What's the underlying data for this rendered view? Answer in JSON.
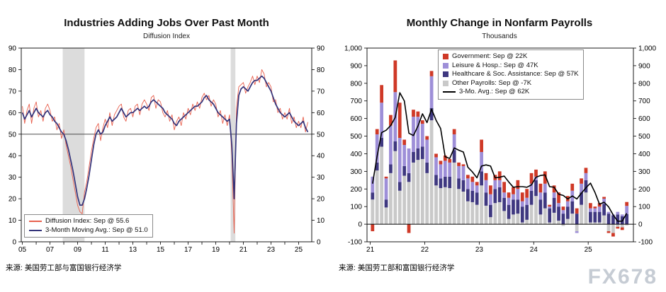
{
  "footer": {
    "watermark": "FX678"
  },
  "chart_data": [
    {
      "type": "line",
      "title": "Industries Adding Jobs Over Past Month",
      "subtitle": "Diffusion Index",
      "source": "来源: 美国劳工部与富国银行经济学",
      "xlim": [
        2004.92,
        2025.95
      ],
      "ylim": [
        0,
        90
      ],
      "yticks": [
        0,
        10,
        20,
        30,
        40,
        50,
        60,
        70,
        80,
        90
      ],
      "ref_line": 50,
      "recessions": [
        [
          2007.92,
          2009.5
        ],
        [
          2020.08,
          2020.42
        ]
      ],
      "xticks": [
        {
          "x": 2005,
          "label": "05"
        },
        {
          "x": 2007,
          "label": "07"
        },
        {
          "x": 2009,
          "label": "09"
        },
        {
          "x": 2011,
          "label": "11"
        },
        {
          "x": 2013,
          "label": "13"
        },
        {
          "x": 2015,
          "label": "15"
        },
        {
          "x": 2017,
          "label": "17"
        },
        {
          "x": 2019,
          "label": "19"
        },
        {
          "x": 2021,
          "label": "21"
        },
        {
          "x": 2023,
          "label": "23"
        },
        {
          "x": 2025,
          "label": "25"
        }
      ],
      "series": [
        {
          "name": "Diffusion Index: Sep @ 55.6",
          "color": "#e8604e",
          "width": 0.9,
          "start": 2005,
          "step": 0.1666667,
          "values": [
            63,
            55,
            61,
            64,
            55,
            62,
            65,
            58,
            61,
            56,
            62,
            64,
            61,
            56,
            58,
            52,
            55,
            48,
            52,
            45,
            40,
            35,
            29,
            23,
            17,
            14,
            13,
            23,
            28,
            35,
            42,
            48,
            53,
            55,
            47,
            53,
            57,
            53,
            60,
            54,
            59,
            61,
            63,
            64,
            58,
            56,
            61,
            62,
            58,
            63,
            64,
            59,
            64,
            66,
            64,
            61,
            67,
            68,
            62,
            66,
            65,
            60,
            58,
            61,
            56,
            59,
            52,
            56,
            58,
            54,
            60,
            57,
            62,
            59,
            64,
            61,
            65,
            62,
            67,
            69,
            66,
            68,
            63,
            66,
            64,
            58,
            61,
            55,
            59,
            54,
            59,
            40,
            4,
            62,
            72,
            73,
            74,
            69,
            72,
            74,
            77,
            73,
            77,
            74,
            80,
            78,
            72,
            74,
            72,
            65,
            66,
            60,
            62,
            57,
            60,
            57,
            62,
            55,
            58,
            53,
            56,
            53,
            58,
            51,
            55.6
          ]
        },
        {
          "name": "3-Month Moving Avg.: Sep @ 51.0",
          "color": "#33337a",
          "width": 1.7,
          "start": 2005,
          "step": 0.1666667,
          "values": [
            60,
            57,
            59,
            61,
            58,
            60,
            62,
            60,
            59,
            58,
            60,
            61,
            59,
            58,
            56,
            55,
            53,
            51,
            50,
            47,
            43,
            38,
            33,
            27,
            21,
            17,
            17,
            20,
            25,
            31,
            38,
            45,
            50,
            52,
            50,
            51,
            54,
            56,
            58,
            56,
            57,
            58,
            60,
            62,
            60,
            58,
            59,
            60,
            60,
            61,
            62,
            61,
            62,
            63,
            62,
            63,
            65,
            66,
            65,
            64,
            63,
            62,
            60,
            59,
            58,
            57,
            55,
            54,
            56,
            57,
            58,
            59,
            60,
            61,
            62,
            63,
            63,
            64,
            65,
            67,
            68,
            66,
            65,
            64,
            62,
            60,
            59,
            58,
            57,
            56,
            57,
            45,
            20,
            55,
            68,
            71,
            72,
            71,
            70,
            72,
            74,
            75,
            75,
            76,
            77,
            76,
            74,
            72,
            70,
            67,
            64,
            62,
            60,
            59,
            58,
            59,
            60,
            58,
            56,
            55,
            54,
            55,
            56,
            53,
            51
          ]
        }
      ]
    },
    {
      "type": "bar",
      "title": "Monthly Change in Nonfarm Payrolls",
      "subtitle": "Thousands",
      "source": "来源: 美国劳工部和富国银行经济学",
      "xlim": [
        2020.94,
        2025.83
      ],
      "ylim": [
        -100,
        1000
      ],
      "yticks": [
        -100,
        0,
        100,
        200,
        300,
        400,
        500,
        600,
        700,
        800,
        900,
        1000
      ],
      "ytick_labels": [
        "-100",
        "0",
        "100",
        "200",
        "300",
        "400",
        "500",
        "600",
        "700",
        "800",
        "900",
        "1,000"
      ],
      "xticks": [
        {
          "x": 2021,
          "label": "21"
        },
        {
          "x": 2022,
          "label": "22"
        },
        {
          "x": 2023,
          "label": "23"
        },
        {
          "x": 2024,
          "label": "24"
        },
        {
          "x": 2025,
          "label": "25"
        }
      ],
      "start_year": 2021,
      "months": 57,
      "stack_order": [
        3,
        2,
        1,
        0
      ],
      "series": [
        {
          "name": "Government: Sep @ 22K",
          "color": "#cf3927",
          "values": [
            -40,
            30,
            100,
            10,
            60,
            180,
            200,
            30,
            -50,
            40,
            30,
            20,
            20,
            30,
            20,
            20,
            30,
            20,
            30,
            20,
            10,
            20,
            30,
            20,
            70,
            40,
            50,
            30,
            50,
            60,
            30,
            40,
            50,
            50,
            50,
            60,
            40,
            50,
            70,
            10,
            40,
            60,
            20,
            30,
            40,
            30,
            30,
            30,
            30,
            10,
            20,
            10,
            -10,
            -20,
            -10,
            -15,
            22
          ]
        },
        {
          "name": "Leisure & Hosp.: Sep @ 47K",
          "color": "#9e8fd8",
          "values": [
            90,
            160,
            200,
            120,
            220,
            280,
            250,
            120,
            140,
            200,
            180,
            130,
            130,
            180,
            100,
            80,
            90,
            80,
            90,
            70,
            80,
            60,
            50,
            40,
            110,
            70,
            60,
            50,
            40,
            30,
            40,
            30,
            60,
            30,
            40,
            40,
            20,
            40,
            50,
            10,
            30,
            20,
            20,
            30,
            60,
            -10,
            50,
            40,
            20,
            20,
            30,
            30,
            10,
            5,
            15,
            10,
            47
          ]
        },
        {
          "name": "Healthcare & Soc. Assistance: Sep @ 57K",
          "color": "#3f3880",
          "values": [
            40,
            45,
            50,
            45,
            50,
            55,
            50,
            55,
            50,
            60,
            65,
            70,
            60,
            70,
            60,
            55,
            60,
            65,
            70,
            60,
            65,
            70,
            65,
            70,
            80,
            75,
            70,
            80,
            85,
            75,
            80,
            85,
            80,
            90,
            85,
            80,
            90,
            85,
            90,
            80,
            85,
            80,
            60,
            70,
            70,
            60,
            70,
            70,
            60,
            60,
            60,
            65,
            60,
            50,
            55,
            45,
            57
          ]
        },
        {
          "name": "Other Payrolls: Sep @ -7K",
          "color": "#c9c9c9",
          "values": [
            140,
            305,
            440,
            95,
            290,
            415,
            190,
            275,
            240,
            350,
            365,
            370,
            290,
            590,
            220,
            205,
            210,
            205,
            350,
            200,
            185,
            130,
            125,
            110,
            220,
            105,
            40,
            120,
            125,
            75,
            30,
            55,
            60,
            10,
            25,
            110,
            160,
            55,
            90,
            10,
            65,
            20,
            -10,
            30,
            60,
            -40,
            110,
            180,
            10,
            10,
            10,
            50,
            -40,
            -50,
            -15,
            -18,
            -7
          ]
        }
      ],
      "line_series": {
        "name": "3-Mo. Avg.: Sep @ 62K",
        "color": "#000000",
        "window": 3
      }
    }
  ]
}
